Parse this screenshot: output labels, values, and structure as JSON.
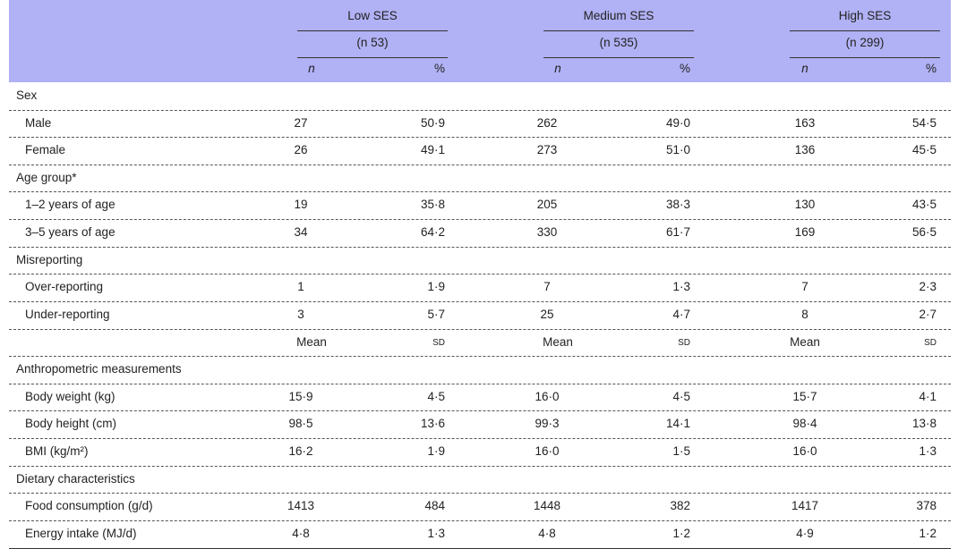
{
  "header": {
    "groups": [
      {
        "name": "Low SES",
        "sample": "(n 53)",
        "columns": [
          "n",
          "%"
        ]
      },
      {
        "name": "Medium SES",
        "sample": "(n 535)",
        "columns": [
          "n",
          "%"
        ]
      },
      {
        "name": "High SES",
        "sample": "(n 299)",
        "columns": [
          "n",
          "%"
        ]
      }
    ]
  },
  "count_sections": [
    {
      "label": "Sex",
      "rows": [
        {
          "label": "Male",
          "cells": [
            "27",
            "50·9",
            "262",
            "49·0",
            "163",
            "54·5"
          ]
        },
        {
          "label": "Female",
          "cells": [
            "26",
            "49·1",
            "273",
            "51·0",
            "136",
            "45·5"
          ]
        }
      ]
    },
    {
      "label": "Age group*",
      "rows": [
        {
          "label": "1–2 years of age",
          "cells": [
            "19",
            "35·8",
            "205",
            "38·3",
            "130",
            "43·5"
          ]
        },
        {
          "label": "3–5 years of age",
          "cells": [
            "34",
            "64·2",
            "330",
            "61·7",
            "169",
            "56·5"
          ]
        }
      ]
    },
    {
      "label": "Misreporting",
      "rows": [
        {
          "label": "Over-reporting",
          "cells": [
            "1",
            "1·9",
            "7",
            "1·3",
            "7",
            "2·3"
          ]
        },
        {
          "label": "Under-reporting",
          "cells": [
            "3",
            "5·7",
            "25",
            "4·7",
            "8",
            "2·7"
          ]
        }
      ]
    }
  ],
  "stat_header": [
    "Mean",
    "SD",
    "Mean",
    "SD",
    "Mean",
    "SD"
  ],
  "measure_sections": [
    {
      "label": "Anthropometric measurements",
      "rows": [
        {
          "label": "Body weight (kg)",
          "cells": [
            "15·9",
            "4·5",
            "16·0",
            "4·5",
            "15·7",
            "4·1"
          ]
        },
        {
          "label": "Body height (cm)",
          "cells": [
            "98·5",
            "13·6",
            "99·3",
            "14·1",
            "98·4",
            "13·8"
          ]
        },
        {
          "label": "BMI (kg/m²)",
          "cells": [
            "16·2",
            "1·9",
            "16·0",
            "1·5",
            "16·0",
            "1·3"
          ]
        }
      ]
    },
    {
      "label": "Dietary characteristics",
      "rows": [
        {
          "label": "Food consumption (g/d)",
          "cells": [
            "1413",
            "484",
            "1448",
            "382",
            "1417",
            "378"
          ]
        },
        {
          "label": "Energy intake (MJ/d)",
          "cells": [
            "4·8",
            "1·3",
            "4·8",
            "1·2",
            "4·9",
            "1·2"
          ]
        }
      ]
    }
  ]
}
